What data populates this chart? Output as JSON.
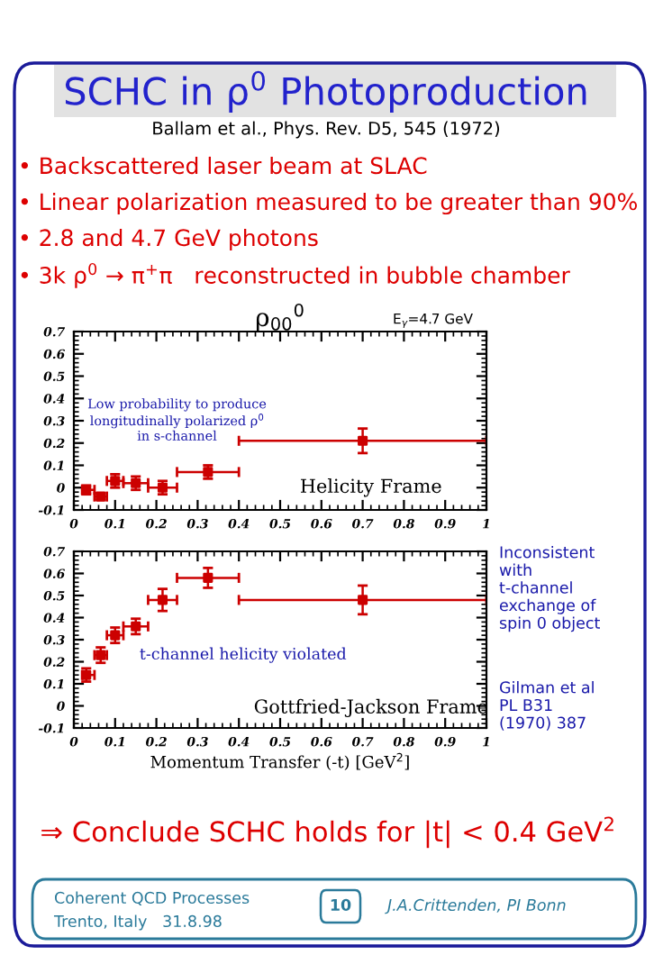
{
  "chart_data": [
    {
      "type": "scatter",
      "title": "ρ$_{00}$$^{0}$",
      "marker": "square",
      "grid": false,
      "x": [
        0.03,
        0.065,
        0.1,
        0.15,
        0.215,
        0.325,
        0.7
      ],
      "series": [
        {
          "color": "#cc0000",
          "values": [
            -0.01,
            -0.04,
            0.03,
            0.02,
            0.0,
            0.07,
            0.21
          ],
          "errors": [
            0.02,
            0.015,
            0.03,
            0.03,
            0.03,
            0.03,
            0.055
          ],
          "xerrors": [
            [
              0.02,
              0.05
            ],
            [
              0.05,
              0.08
            ],
            [
              0.08,
              0.12
            ],
            [
              0.12,
              0.18
            ],
            [
              0.18,
              0.25
            ],
            [
              0.25,
              0.4
            ],
            [
              0.4,
              1.0
            ]
          ]
        }
      ],
      "xlim": [
        0,
        1
      ],
      "ylim": [
        -0.1,
        0.7
      ],
      "xticks": [
        0,
        0.1,
        0.2,
        0.3,
        0.4,
        0.5,
        0.6,
        0.7,
        0.8,
        0.9,
        1
      ],
      "yticks": [
        -0.1,
        0,
        0.1,
        0.2,
        0.3,
        0.4,
        0.5,
        0.6,
        0.7
      ],
      "annotations": [
        "SCHC in ρ$^{0}$ Photoproduction",
        "Ballam et al., Phys. Rev. D5, 545 (1972)",
        "• Backscattered laser beam at SLAC",
        "• Linear polarization measured to be greater than 90%",
        "• 2.8 and 4.7 GeV photons",
        "• 3k ρ$^{0}$ → π$^{+}$π   reconstructed in bubble chamber",
        "E$_{γ}$=4.7 GeV",
        "Low probability to produce\nlongitudinally polarized ρ$^{0}$\nin s-channel",
        "Helicity Frame"
      ]
    },
    {
      "type": "scatter",
      "marker": "square",
      "grid": false,
      "xlabel": "Momentum Transfer (-t) [GeV$^{2}$]",
      "x": [
        0.03,
        0.065,
        0.1,
        0.15,
        0.215,
        0.325,
        0.7
      ],
      "series": [
        {
          "color": "#cc0000",
          "values": [
            0.14,
            0.23,
            0.32,
            0.36,
            0.48,
            0.58,
            0.48
          ],
          "errors": [
            0.03,
            0.035,
            0.035,
            0.035,
            0.05,
            0.045,
            0.065
          ],
          "xerrors": [
            [
              0.02,
              0.05
            ],
            [
              0.05,
              0.08
            ],
            [
              0.08,
              0.12
            ],
            [
              0.12,
              0.18
            ],
            [
              0.18,
              0.25
            ],
            [
              0.25,
              0.4
            ],
            [
              0.4,
              1.0
            ]
          ]
        }
      ],
      "xlim": [
        0,
        1
      ],
      "ylim": [
        -0.1,
        0.7
      ],
      "xticks": [
        0,
        0.1,
        0.2,
        0.3,
        0.4,
        0.5,
        0.6,
        0.7,
        0.8,
        0.9,
        1
      ],
      "yticks": [
        -0.1,
        0,
        0.1,
        0.2,
        0.3,
        0.4,
        0.5,
        0.6,
        0.7
      ],
      "annotations": [
        "t-channel helicity violated",
        "Gottfried-Jackson Frame",
        "Inconsistent\nwith\nt-channel\nexchange of\nspin 0 object",
        "Gilman et al\nPL B31\n(1970) 387",
        "⇒ Conclude SCHC holds for |t| < 0.4 GeV$^{2}$",
        "Coherent QCD Processes",
        "Trento, Italy   31.8.98",
        "10",
        "J.A.Crittenden, PI Bonn"
      ]
    }
  ]
}
